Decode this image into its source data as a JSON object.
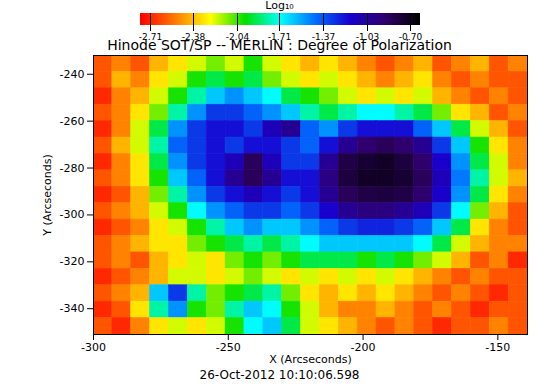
{
  "chart_data": {
    "type": "heatmap",
    "title": "Hinode SOT/SP -- MERLIN : Degree of Polarization",
    "x_label": "X (Arcseconds)",
    "y_label": "Y (Arcseconds)",
    "annotation": "26-Oct-2012 10:10:06.598",
    "xlim": [
      -300,
      -139
    ],
    "ylim": [
      -351,
      -232
    ],
    "xticks": [
      -300,
      -250,
      -200,
      -150
    ],
    "yticks": [
      -340,
      -320,
      -300,
      -280,
      -260,
      -240
    ],
    "x_bins": [
      -300,
      -293,
      -286,
      -279,
      -272,
      -265,
      -258,
      -251,
      -244,
      -237,
      -230,
      -223,
      -216,
      -209,
      -202,
      -195,
      -188,
      -181,
      -174,
      -167,
      -160,
      -153,
      -146,
      -139
    ],
    "y_bins": [
      -232,
      -239,
      -246,
      -253,
      -260,
      -267,
      -274,
      -281,
      -288,
      -295,
      -302,
      -309,
      -316,
      -323,
      -330,
      -337,
      -344,
      -351
    ],
    "values": [
      [
        -2.6,
        -2.5,
        -2.6,
        -2.4,
        -2.3,
        -2.2,
        -2.1,
        -2.2,
        -2.0,
        -2.2,
        -2.3,
        -2.4,
        -2.3,
        -2.4,
        -2.5,
        -2.6,
        -2.5,
        -2.4,
        -2.6,
        -2.5,
        -2.4,
        -2.6,
        -2.5
      ],
      [
        -2.6,
        -2.4,
        -2.5,
        -2.3,
        -2.2,
        -2.0,
        -1.9,
        -2.0,
        -1.9,
        -2.1,
        -2.2,
        -2.3,
        -2.2,
        -2.3,
        -2.4,
        -2.5,
        -2.4,
        -2.3,
        -2.5,
        -2.6,
        -2.5,
        -2.6,
        -2.6
      ],
      [
        -2.7,
        -2.5,
        -2.4,
        -2.2,
        -2.0,
        -1.8,
        -1.6,
        -1.5,
        -1.6,
        -1.7,
        -1.9,
        -2.0,
        -2.1,
        -2.2,
        -2.3,
        -2.2,
        -2.3,
        -2.2,
        -2.4,
        -2.5,
        -2.6,
        -2.5,
        -2.6
      ],
      [
        -2.6,
        -2.5,
        -2.3,
        -2.1,
        -1.8,
        -1.5,
        -1.3,
        -1.3,
        -1.4,
        -1.5,
        -1.6,
        -1.8,
        -1.9,
        -1.8,
        -1.7,
        -1.7,
        -1.8,
        -1.9,
        -2.1,
        -2.3,
        -2.4,
        -2.6,
        -2.5
      ],
      [
        -2.7,
        -2.5,
        -2.2,
        -1.9,
        -1.5,
        -1.3,
        -1.2,
        -1.2,
        -1.3,
        -1.1,
        -1.0,
        -1.4,
        -1.5,
        -1.3,
        -1.2,
        -1.2,
        -1.2,
        -1.4,
        -1.6,
        -1.9,
        -2.2,
        -2.4,
        -2.6
      ],
      [
        -2.6,
        -2.4,
        -2.2,
        -1.8,
        -1.4,
        -1.3,
        -1.2,
        -1.3,
        -1.2,
        -1.2,
        -1.3,
        -1.4,
        -1.2,
        -1.0,
        -0.9,
        -0.85,
        -0.9,
        -1.0,
        -1.3,
        -1.6,
        -2.0,
        -2.3,
        -2.5
      ],
      [
        -2.7,
        -2.5,
        -2.3,
        -1.9,
        -1.5,
        -1.3,
        -1.2,
        -1.1,
        -0.85,
        -1.1,
        -1.3,
        -1.3,
        -1.0,
        -0.8,
        -0.75,
        -0.72,
        -0.78,
        -0.9,
        -1.15,
        -1.5,
        -1.9,
        -2.2,
        -2.5
      ],
      [
        -2.6,
        -2.5,
        -2.3,
        -2.0,
        -1.6,
        -1.4,
        -1.2,
        -1.0,
        -0.85,
        -1.0,
        -1.2,
        -1.2,
        -0.95,
        -0.78,
        -0.72,
        -0.72,
        -0.75,
        -0.85,
        -1.1,
        -1.45,
        -1.8,
        -2.2,
        -2.4
      ],
      [
        -2.7,
        -2.6,
        -2.4,
        -2.1,
        -1.8,
        -1.5,
        -1.3,
        -1.2,
        -1.1,
        -1.2,
        -1.3,
        -1.2,
        -1.0,
        -0.85,
        -0.8,
        -0.78,
        -0.8,
        -0.9,
        -1.15,
        -1.5,
        -1.9,
        -2.3,
        -2.5
      ],
      [
        -2.6,
        -2.5,
        -2.4,
        -2.2,
        -2.0,
        -1.7,
        -1.5,
        -1.4,
        -1.3,
        -1.3,
        -1.4,
        -1.3,
        -1.15,
        -1.0,
        -0.95,
        -0.95,
        -1.0,
        -1.1,
        -1.3,
        -1.7,
        -2.1,
        -2.4,
        -2.6
      ],
      [
        -2.7,
        -2.6,
        -2.5,
        -2.3,
        -2.2,
        -2.0,
        -1.8,
        -1.6,
        -1.5,
        -1.6,
        -1.6,
        -1.5,
        -1.4,
        -1.3,
        -1.25,
        -1.25,
        -1.3,
        -1.4,
        -1.6,
        -1.9,
        -2.3,
        -2.5,
        -2.6
      ],
      [
        -2.6,
        -2.5,
        -2.4,
        -2.3,
        -2.3,
        -2.1,
        -2.0,
        -1.9,
        -1.8,
        -1.9,
        -1.8,
        -1.7,
        -1.6,
        -1.6,
        -1.6,
        -1.6,
        -1.6,
        -1.7,
        -1.9,
        -2.2,
        -2.4,
        -2.5,
        -2.5
      ],
      [
        -2.6,
        -2.5,
        -2.6,
        -2.4,
        -2.3,
        -2.2,
        -2.3,
        -2.1,
        -2.0,
        -2.1,
        -2.0,
        -1.9,
        -1.9,
        -1.9,
        -2.0,
        -1.9,
        -2.0,
        -2.1,
        -2.2,
        -2.4,
        -2.6,
        -2.5,
        -2.7
      ],
      [
        -2.7,
        -2.6,
        -2.5,
        -2.4,
        -2.2,
        -2.2,
        -2.3,
        -2.2,
        -2.1,
        -2.2,
        -2.3,
        -2.2,
        -2.3,
        -2.2,
        -2.3,
        -2.2,
        -2.3,
        -2.4,
        -2.5,
        -2.6,
        -2.5,
        -2.6,
        -2.6
      ],
      [
        -2.6,
        -2.5,
        -2.4,
        -1.6,
        -1.3,
        -1.8,
        -2.1,
        -2.0,
        -1.9,
        -1.8,
        -2.1,
        -2.3,
        -2.4,
        -2.3,
        -2.4,
        -2.3,
        -2.4,
        -2.5,
        -2.6,
        -2.5,
        -2.6,
        -2.7,
        -2.6
      ],
      [
        -2.7,
        -2.6,
        -2.3,
        -1.8,
        -1.5,
        -2.0,
        -2.1,
        -1.8,
        -1.6,
        -1.7,
        -2.0,
        -2.2,
        -2.4,
        -2.5,
        -2.5,
        -2.4,
        -2.5,
        -2.6,
        -2.5,
        -2.6,
        -2.7,
        -2.6,
        -2.6
      ],
      [
        -2.6,
        -2.7,
        -2.5,
        -2.3,
        -2.2,
        -2.3,
        -2.2,
        -2.0,
        -1.7,
        -1.6,
        -1.9,
        -2.2,
        -2.3,
        -2.4,
        -2.5,
        -2.6,
        -2.5,
        -2.6,
        -2.7,
        -2.6,
        -2.6,
        -2.5,
        -2.6
      ]
    ],
    "colorbar_label": "Log₁₀",
    "colorbar_range": [
      -2.79,
      -0.62
    ],
    "colorbar_ticks": [
      -2.71,
      -2.38,
      -2.04,
      -1.71,
      -1.37,
      -1.03,
      -0.7
    ]
  }
}
